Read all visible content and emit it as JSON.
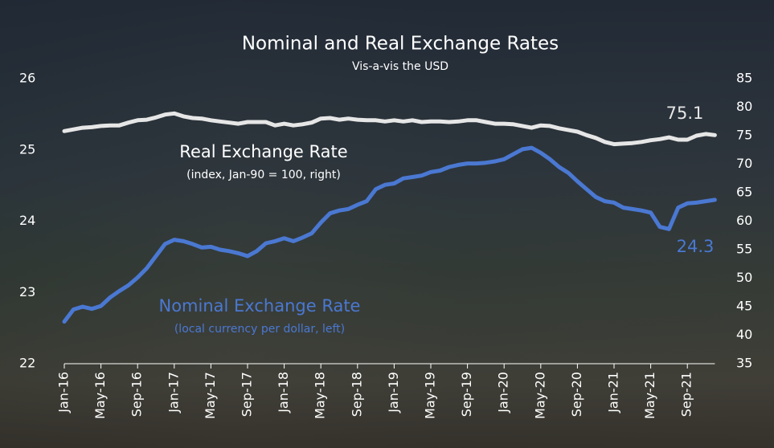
{
  "chart_data": {
    "type": "line",
    "title": "Nominal and Real Exchange Rates",
    "subtitle": "Vis-a-vis the USD",
    "categories": [
      "Jan-16",
      null,
      null,
      null,
      "May-16",
      null,
      null,
      null,
      "Sep-16",
      null,
      null,
      null,
      "Jan-17",
      null,
      null,
      null,
      "May-17",
      null,
      null,
      null,
      "Sep-17",
      null,
      null,
      null,
      "Jan-18",
      null,
      null,
      null,
      "May-18",
      null,
      null,
      null,
      "Sep-18",
      null,
      null,
      null,
      "Jan-19",
      null,
      null,
      null,
      "May-19",
      null,
      null,
      null,
      "Sep-19",
      null,
      null,
      null,
      "Jan-20",
      null,
      null,
      null,
      "May-20",
      null,
      null,
      null,
      "Sep-20",
      null,
      null,
      null,
      "Jan-21",
      null,
      null,
      null,
      "May-21",
      null,
      null,
      null,
      "Sep-21",
      null,
      null,
      null
    ],
    "ylim": [
      22,
      26
    ],
    "yticks": [
      22,
      23,
      24,
      25,
      26
    ],
    "y2lim": [
      35,
      85
    ],
    "y2ticks": [
      35,
      40,
      45,
      50,
      55,
      60,
      65,
      70,
      75,
      80,
      85
    ],
    "series": [
      {
        "name": "Nominal Exchange Rate",
        "note": "(local currency per dollar, left)",
        "color": "#4a78d2",
        "axis": "y",
        "values": [
          22.59,
          22.76,
          22.8,
          22.77,
          22.81,
          22.93,
          23.02,
          23.1,
          23.21,
          23.34,
          23.51,
          23.68,
          23.74,
          23.72,
          23.68,
          23.63,
          23.64,
          23.6,
          23.58,
          23.55,
          23.51,
          23.58,
          23.69,
          23.72,
          23.76,
          23.72,
          23.77,
          23.83,
          23.98,
          24.11,
          24.15,
          24.17,
          24.23,
          24.28,
          24.45,
          24.51,
          24.53,
          24.6,
          24.62,
          24.64,
          24.69,
          24.71,
          24.76,
          24.79,
          24.81,
          24.81,
          24.82,
          24.84,
          24.87,
          24.94,
          25.01,
          25.03,
          24.96,
          24.87,
          24.76,
          24.68,
          24.56,
          24.45,
          24.34,
          24.28,
          24.26,
          24.19,
          24.17,
          24.15,
          24.12,
          23.92,
          23.89,
          24.19,
          24.25,
          24.26,
          24.28,
          24.3
        ]
      },
      {
        "name": "Real Exchange Rate",
        "note": "(index, Jan-90 = 100, right)",
        "color": "#e6e6e6",
        "axis": "y2",
        "values": [
          75.8,
          76.1,
          76.4,
          76.5,
          76.7,
          76.8,
          76.8,
          77.3,
          77.7,
          77.8,
          78.2,
          78.7,
          78.9,
          78.4,
          78.1,
          78.0,
          77.7,
          77.5,
          77.3,
          77.1,
          77.4,
          77.4,
          77.4,
          76.8,
          77.1,
          76.8,
          77.0,
          77.3,
          78.0,
          78.1,
          77.8,
          78.0,
          77.8,
          77.7,
          77.7,
          77.5,
          77.7,
          77.5,
          77.7,
          77.4,
          77.5,
          77.5,
          77.4,
          77.5,
          77.7,
          77.7,
          77.4,
          77.1,
          77.1,
          77.0,
          76.7,
          76.4,
          76.8,
          76.7,
          76.3,
          76.0,
          75.7,
          75.1,
          74.6,
          73.9,
          73.5,
          73.6,
          73.7,
          73.9,
          74.2,
          74.4,
          74.7,
          74.3,
          74.3,
          75.0,
          75.3,
          75.1
        ]
      }
    ]
  }
}
